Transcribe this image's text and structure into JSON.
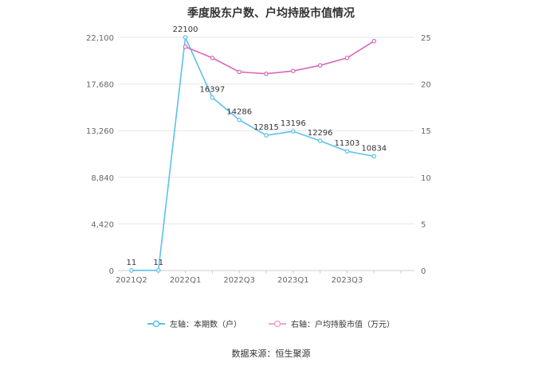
{
  "title": "季度股东户数、户均持股市值情况",
  "source": "数据来源：恒生聚源",
  "colors": {
    "left": "#5bc0eb",
    "right": "#d966b8",
    "grid": "#e6e6e6",
    "axis": "#cccccc",
    "tick": "#666666"
  },
  "legend": [
    {
      "label": "左轴：本期数（户）",
      "color": "#5bc0eb"
    },
    {
      "label": "右轴：户均持股市值（万元）",
      "color": "#e8a6d8"
    }
  ],
  "chart_data": {
    "type": "line",
    "x": [
      "2021Q2",
      "2021Q3",
      "2022Q1",
      "2022Q2",
      "2022Q3",
      "2022Q4",
      "2023Q1",
      "2023Q2",
      "2023Q3",
      "2023Q4",
      "2024Q1"
    ],
    "x_tick_labels": [
      "2021Q2",
      "2022Q1",
      "2022Q3",
      "2023Q1",
      "2023Q3"
    ],
    "y_left": {
      "ticks": [
        "0",
        "4,420",
        "8,840",
        "13,260",
        "17,680",
        "22,100"
      ],
      "range": [
        0,
        22100
      ]
    },
    "y_right": {
      "ticks": [
        "0",
        "5",
        "10",
        "15",
        "20",
        "25"
      ],
      "range": [
        0,
        25
      ]
    },
    "series": [
      {
        "name": "左轴：本期数（户）",
        "axis": "left",
        "values": [
          11,
          11,
          22100,
          16397,
          14286,
          12815,
          13196,
          12296,
          11303,
          10834,
          null
        ],
        "labels": [
          "11",
          "11",
          "22100",
          "16397",
          "14286",
          "12815",
          "13196",
          "12296",
          "11303",
          "10834",
          ""
        ]
      },
      {
        "name": "右轴：户均持股市值（万元）",
        "axis": "right",
        "values": [
          null,
          null,
          24.0,
          22.8,
          21.3,
          21.1,
          21.4,
          22.0,
          22.8,
          24.6,
          null
        ]
      }
    ],
    "grid": true,
    "legend_position": "bottom"
  }
}
